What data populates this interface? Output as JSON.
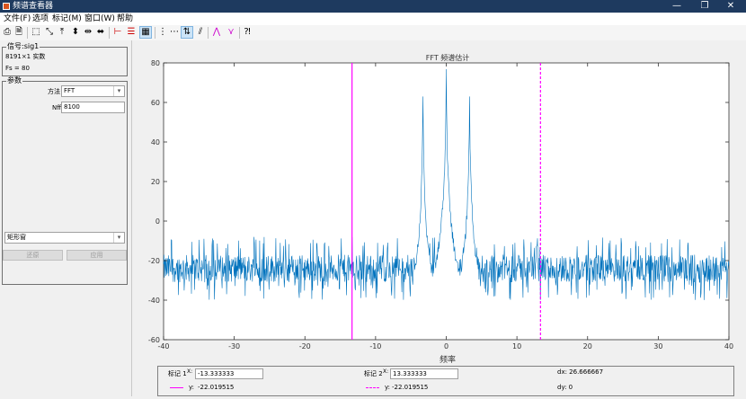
{
  "window": {
    "title": "频谱查看器",
    "controls": {
      "minimize": "—",
      "maximize": "❐",
      "close": "✕"
    }
  },
  "menubar": [
    "文件(F)",
    "选项",
    "标记(M)",
    "窗口(W)",
    "帮助"
  ],
  "toolbar": {
    "icons": [
      "print-icon",
      "print-preview-icon",
      "zoom-box-icon",
      "zoom-fit-icon",
      "zoom-vertical-icon",
      "pan-vertical-icon",
      "zoom-horizontal-icon",
      "pan-horizontal-icon",
      "marker-line-icon",
      "grid-icon",
      "spectrum-display-icon",
      "vertical-markers-icon",
      "horizontal-markers-icon",
      "swap-markers-icon",
      "marker-lock-icon",
      "peak-find-icon",
      "peak-next-icon",
      "context-help-icon"
    ]
  },
  "signal_panel": {
    "legend": "信号:sig1",
    "line1": "8191×1 实数",
    "line2": "Fs = 80"
  },
  "params_panel": {
    "legend": "参数",
    "method_label": "方法",
    "method_value": "FFT",
    "nfft_label": "Nfft",
    "nfft_value": "8100",
    "window_value": "矩形窗",
    "revert_button": "还原",
    "apply_button": "应用"
  },
  "markers": {
    "m1_label": "标记 1",
    "m1_x_label": "X:",
    "m1_x": "-13.333333",
    "m1_y_label": "y:",
    "m1_y": "-22.019515",
    "m2_label": "标记 2",
    "m2_x_label": "X:",
    "m2_x": "13.333333",
    "m2_y_label": "y:",
    "m2_y": "-22.019515",
    "dx_text": "dx: 26.666667",
    "dy_text": "dy: 0"
  },
  "colors": {
    "line": "#0072bd",
    "marker": "#ff00ff",
    "titlebar": "#1e3a5f"
  },
  "chart_data": {
    "type": "line",
    "title": "FFT 频谱估计",
    "xlabel": "频率",
    "ylabel": "",
    "xlim": [
      -40,
      40
    ],
    "ylim": [
      -60,
      80
    ],
    "xticks": [
      -40,
      -30,
      -20,
      -10,
      0,
      10,
      20,
      30,
      40
    ],
    "yticks": [
      -60,
      -40,
      -20,
      0,
      20,
      40,
      60,
      80
    ],
    "grid": false,
    "series": [
      {
        "noise_floor_mean": -24,
        "noise_floor_spread": [
          -40,
          -8
        ],
        "peaks": [
          {
            "x": -3.3,
            "y": 63
          },
          {
            "x": 0,
            "y": 74
          },
          {
            "x": 3.3,
            "y": 63
          }
        ]
      }
    ],
    "markers": [
      {
        "x": -13.333333,
        "y": -22.019515,
        "style": "solid"
      },
      {
        "x": 13.333333,
        "y": -22.019515,
        "style": "dashed"
      }
    ]
  }
}
